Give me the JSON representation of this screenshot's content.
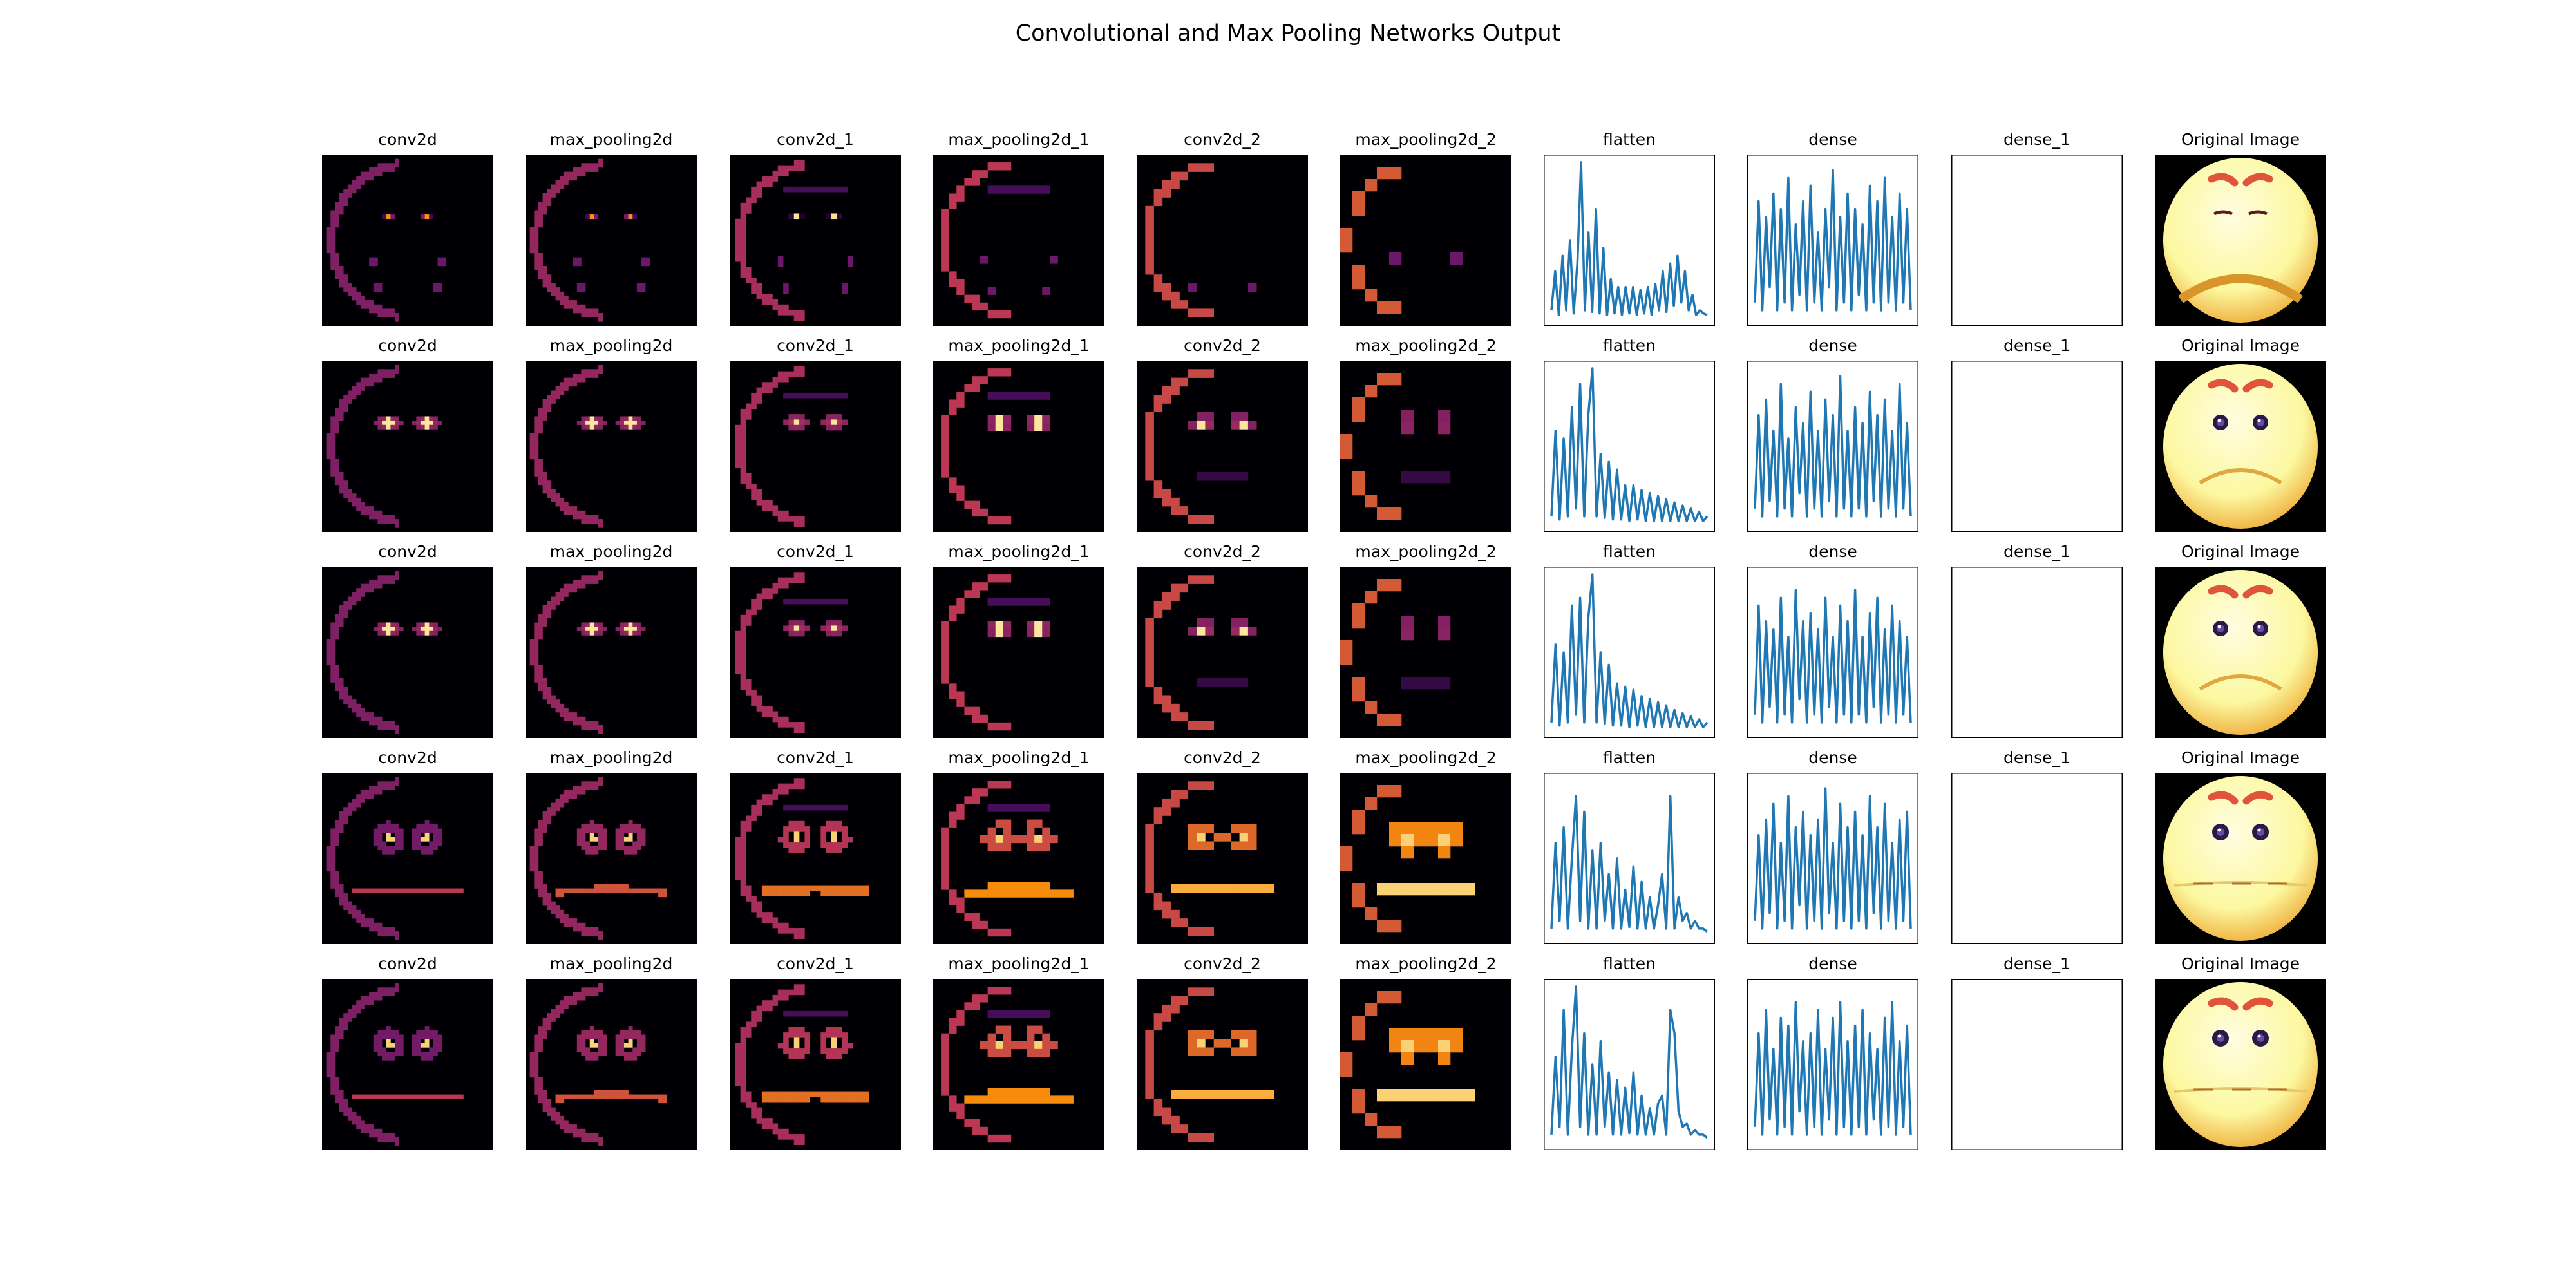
{
  "title": "Convolutional and Max Pooling Networks Output",
  "colors": {
    "line": "#1f77b4",
    "heat_dark": "#000004",
    "heat_mid": "#8c2981",
    "heat_hot": "#fe9f6d",
    "heat_max": "#fcfdbf",
    "face": "#fcf8a0",
    "face_shade": "#f0b848",
    "brow": "#e0543a"
  },
  "columns": [
    "conv2d",
    "max_pooling2d",
    "conv2d_1",
    "max_pooling2d_1",
    "conv2d_2",
    "max_pooling2d_2",
    "flatten",
    "dense",
    "dense_1",
    "Original Image"
  ],
  "column_types": [
    "heatmap",
    "heatmap",
    "heatmap",
    "heatmap",
    "heatmap",
    "heatmap",
    "line",
    "line",
    "empty",
    "image"
  ],
  "rows": [
    {
      "expression": "squint"
    },
    {
      "expression": "open-narrow"
    },
    {
      "expression": "open-narrow"
    },
    {
      "expression": "wide"
    },
    {
      "expression": "wide"
    }
  ],
  "chart_data": {
    "type": "grid",
    "rows": 5,
    "columns": 10,
    "axes_visible": false,
    "flatten_series": [
      {
        "name": "",
        "values": [
          0.05,
          0.3,
          0.02,
          0.4,
          0.05,
          0.5,
          0.03,
          0.35,
          1.0,
          0.05,
          0.55,
          0.04,
          0.7,
          0.03,
          0.45,
          0.02,
          0.25,
          0.03,
          0.2,
          0.02,
          0.2,
          0.03,
          0.2,
          0.02,
          0.18,
          0.03,
          0.2,
          0.02,
          0.22,
          0.05,
          0.3,
          0.04,
          0.35,
          0.08,
          0.4,
          0.1,
          0.3,
          0.05,
          0.15,
          0.02,
          0.05,
          0.03,
          0.02
        ]
      },
      {
        "name": "",
        "values": [
          0.05,
          0.6,
          0.03,
          0.55,
          0.05,
          0.75,
          0.1,
          0.9,
          0.05,
          0.7,
          1.0,
          0.05,
          0.45,
          0.04,
          0.4,
          0.03,
          0.35,
          0.03,
          0.25,
          0.02,
          0.25,
          0.03,
          0.22,
          0.02,
          0.2,
          0.02,
          0.18,
          0.02,
          0.16,
          0.02,
          0.14,
          0.02,
          0.12,
          0.02,
          0.1,
          0.02,
          0.08,
          0.02,
          0.05
        ]
      },
      {
        "name": "",
        "values": [
          0.05,
          0.55,
          0.03,
          0.5,
          0.05,
          0.8,
          0.1,
          0.85,
          0.05,
          0.72,
          1.0,
          0.05,
          0.5,
          0.04,
          0.42,
          0.03,
          0.3,
          0.03,
          0.28,
          0.02,
          0.26,
          0.03,
          0.22,
          0.02,
          0.2,
          0.02,
          0.18,
          0.02,
          0.16,
          0.02,
          0.13,
          0.02,
          0.11,
          0.02,
          0.09,
          0.02,
          0.07,
          0.02,
          0.05
        ]
      },
      {
        "name": "",
        "values": [
          0.05,
          0.6,
          0.1,
          0.7,
          0.05,
          0.5,
          0.9,
          0.1,
          0.8,
          0.05,
          0.55,
          0.05,
          0.6,
          0.1,
          0.4,
          0.05,
          0.5,
          0.05,
          0.3,
          0.06,
          0.45,
          0.05,
          0.35,
          0.05,
          0.25,
          0.05,
          0.2,
          0.4,
          0.05,
          0.9,
          0.05,
          0.25,
          0.1,
          0.15,
          0.05,
          0.1,
          0.05,
          0.05,
          0.03
        ]
      },
      {
        "name": "",
        "values": [
          0.05,
          0.55,
          0.1,
          0.85,
          0.05,
          0.6,
          1.0,
          0.1,
          0.7,
          0.05,
          0.5,
          0.05,
          0.65,
          0.1,
          0.45,
          0.05,
          0.4,
          0.05,
          0.35,
          0.06,
          0.45,
          0.05,
          0.3,
          0.05,
          0.22,
          0.05,
          0.25,
          0.3,
          0.05,
          0.85,
          0.7,
          0.2,
          0.1,
          0.12,
          0.05,
          0.08,
          0.05,
          0.05,
          0.03
        ]
      }
    ],
    "dense_series": [
      {
        "name": "",
        "values": [
          0.1,
          0.75,
          0.05,
          0.65,
          0.2,
          0.8,
          0.05,
          0.7,
          0.1,
          0.9,
          0.05,
          0.6,
          0.15,
          0.75,
          0.05,
          0.85,
          0.1,
          0.55,
          0.05,
          0.7,
          0.2,
          0.95,
          0.05,
          0.65,
          0.1,
          0.8,
          0.05,
          0.7,
          0.15,
          0.6,
          0.05,
          0.85,
          0.1,
          0.75,
          0.05,
          0.9,
          0.1,
          0.65,
          0.05,
          0.8,
          0.1,
          0.7,
          0.05
        ]
      },
      {
        "name": "",
        "values": [
          0.1,
          0.7,
          0.05,
          0.8,
          0.15,
          0.6,
          0.05,
          0.9,
          0.1,
          0.55,
          0.05,
          0.75,
          0.2,
          0.65,
          0.05,
          0.85,
          0.1,
          0.6,
          0.05,
          0.8,
          0.15,
          0.7,
          0.05,
          0.95,
          0.1,
          0.6,
          0.05,
          0.75,
          0.1,
          0.65,
          0.05,
          0.85,
          0.15,
          0.7,
          0.05,
          0.8,
          0.1,
          0.6,
          0.05,
          0.9,
          0.1,
          0.65,
          0.05
        ]
      },
      {
        "name": "",
        "values": [
          0.1,
          0.8,
          0.05,
          0.7,
          0.15,
          0.65,
          0.05,
          0.85,
          0.1,
          0.6,
          0.05,
          0.9,
          0.2,
          0.7,
          0.05,
          0.75,
          0.1,
          0.65,
          0.05,
          0.85,
          0.15,
          0.6,
          0.05,
          0.8,
          0.1,
          0.7,
          0.05,
          0.9,
          0.1,
          0.6,
          0.05,
          0.75,
          0.15,
          0.85,
          0.05,
          0.65,
          0.1,
          0.8,
          0.05,
          0.7,
          0.1,
          0.6,
          0.05
        ]
      },
      {
        "name": "",
        "values": [
          0.1,
          0.65,
          0.05,
          0.75,
          0.15,
          0.85,
          0.05,
          0.6,
          0.1,
          0.9,
          0.05,
          0.7,
          0.2,
          0.8,
          0.05,
          0.65,
          0.1,
          0.75,
          0.05,
          0.95,
          0.15,
          0.6,
          0.05,
          0.85,
          0.1,
          0.7,
          0.05,
          0.8,
          0.1,
          0.65,
          0.05,
          0.9,
          0.15,
          0.7,
          0.05,
          0.85,
          0.1,
          0.6,
          0.05,
          0.75,
          0.1,
          0.8,
          0.05
        ]
      },
      {
        "name": "",
        "values": [
          0.1,
          0.7,
          0.05,
          0.85,
          0.15,
          0.6,
          0.05,
          0.8,
          0.1,
          0.75,
          0.05,
          0.9,
          0.2,
          0.65,
          0.05,
          0.7,
          0.1,
          0.85,
          0.05,
          0.6,
          0.15,
          0.8,
          0.05,
          0.9,
          0.1,
          0.65,
          0.05,
          0.75,
          0.1,
          0.85,
          0.05,
          0.7,
          0.15,
          0.6,
          0.05,
          0.8,
          0.1,
          0.9,
          0.05,
          0.65,
          0.1,
          0.75,
          0.05
        ]
      }
    ]
  }
}
